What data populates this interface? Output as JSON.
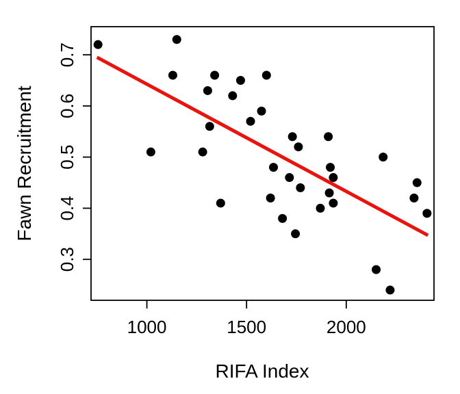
{
  "chart_data": {
    "type": "scatter",
    "title": "",
    "xlabel": "RIFA Index",
    "ylabel": "Fawn Recruitment",
    "xlim": [
      720,
      2440
    ],
    "ylim": [
      0.22,
      0.755
    ],
    "xticks": [
      1000,
      1500,
      2000
    ],
    "yticks": [
      0.3,
      0.4,
      0.5,
      0.6,
      0.7
    ],
    "grid": false,
    "legend": "none",
    "point_color": "#000000",
    "line_color": "#e8140f",
    "points": [
      {
        "x": 755,
        "y": 0.72
      },
      {
        "x": 1020,
        "y": 0.51
      },
      {
        "x": 1130,
        "y": 0.66
      },
      {
        "x": 1150,
        "y": 0.73
      },
      {
        "x": 1280,
        "y": 0.51
      },
      {
        "x": 1305,
        "y": 0.63
      },
      {
        "x": 1315,
        "y": 0.56
      },
      {
        "x": 1340,
        "y": 0.66
      },
      {
        "x": 1370,
        "y": 0.41
      },
      {
        "x": 1430,
        "y": 0.62
      },
      {
        "x": 1470,
        "y": 0.65
      },
      {
        "x": 1520,
        "y": 0.57
      },
      {
        "x": 1575,
        "y": 0.59
      },
      {
        "x": 1600,
        "y": 0.66
      },
      {
        "x": 1620,
        "y": 0.42
      },
      {
        "x": 1635,
        "y": 0.48
      },
      {
        "x": 1680,
        "y": 0.38
      },
      {
        "x": 1715,
        "y": 0.46
      },
      {
        "x": 1730,
        "y": 0.54
      },
      {
        "x": 1745,
        "y": 0.35
      },
      {
        "x": 1760,
        "y": 0.52
      },
      {
        "x": 1770,
        "y": 0.44
      },
      {
        "x": 1870,
        "y": 0.4
      },
      {
        "x": 1910,
        "y": 0.54
      },
      {
        "x": 1915,
        "y": 0.43
      },
      {
        "x": 1920,
        "y": 0.48
      },
      {
        "x": 1935,
        "y": 0.46
      },
      {
        "x": 1935,
        "y": 0.41
      },
      {
        "x": 2150,
        "y": 0.28
      },
      {
        "x": 2185,
        "y": 0.5
      },
      {
        "x": 2220,
        "y": 0.24
      },
      {
        "x": 2340,
        "y": 0.42
      },
      {
        "x": 2355,
        "y": 0.45
      },
      {
        "x": 2405,
        "y": 0.39
      }
    ],
    "fit_line": {
      "x": [
        750,
        2410
      ],
      "y": [
        0.695,
        0.347
      ]
    }
  }
}
